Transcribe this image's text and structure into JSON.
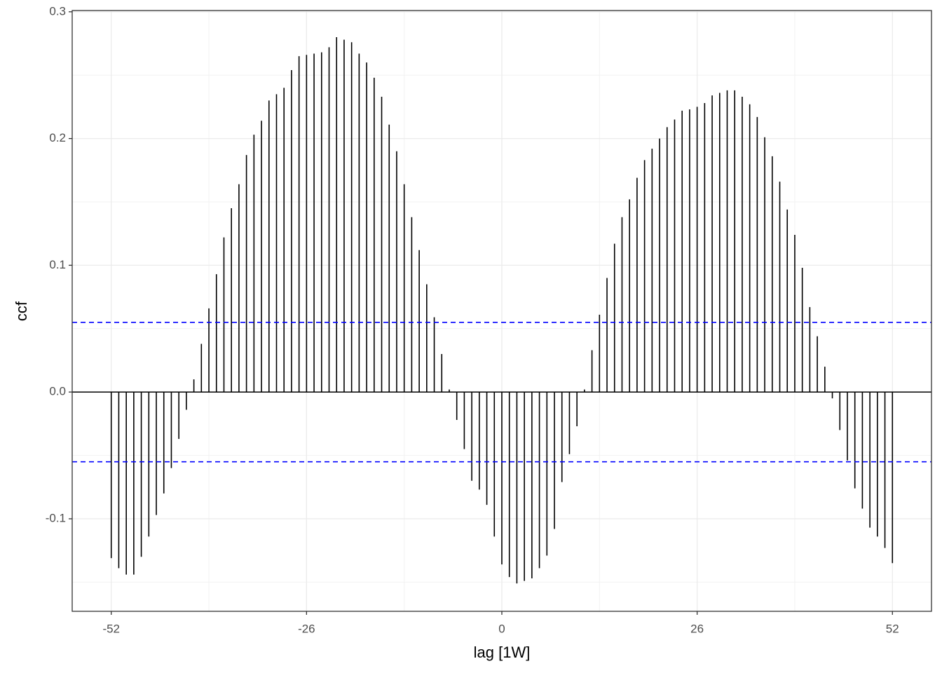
{
  "chart_data": {
    "type": "ccf",
    "x_label": "lag [1W]",
    "y_label": "ccf",
    "x": [
      -52,
      -51,
      -50,
      -49,
      -48,
      -47,
      -46,
      -45,
      -44,
      -43,
      -42,
      -41,
      -40,
      -39,
      -38,
      -37,
      -36,
      -35,
      -34,
      -33,
      -32,
      -31,
      -30,
      -29,
      -28,
      -27,
      -26,
      -25,
      -24,
      -23,
      -22,
      -21,
      -20,
      -19,
      -18,
      -17,
      -16,
      -15,
      -14,
      -13,
      -12,
      -11,
      -10,
      -9,
      -8,
      -7,
      -6,
      -5,
      -4,
      -3,
      -2,
      -1,
      0,
      1,
      2,
      3,
      4,
      5,
      6,
      7,
      8,
      9,
      10,
      11,
      12,
      13,
      14,
      15,
      16,
      17,
      18,
      19,
      20,
      21,
      22,
      23,
      24,
      25,
      26,
      27,
      28,
      29,
      30,
      31,
      32,
      33,
      34,
      35,
      36,
      37,
      38,
      39,
      40,
      41,
      42,
      43,
      44,
      45,
      46,
      47,
      48,
      49,
      50,
      51,
      52
    ],
    "values": [
      -0.131,
      -0.139,
      -0.144,
      -0.144,
      -0.13,
      -0.114,
      -0.097,
      -0.08,
      -0.06,
      -0.037,
      -0.014,
      0.01,
      0.038,
      0.066,
      0.093,
      0.122,
      0.145,
      0.164,
      0.187,
      0.203,
      0.214,
      0.23,
      0.235,
      0.24,
      0.254,
      0.265,
      0.266,
      0.267,
      0.268,
      0.272,
      0.28,
      0.278,
      0.276,
      0.267,
      0.26,
      0.248,
      0.233,
      0.211,
      0.19,
      0.164,
      0.138,
      0.112,
      0.085,
      0.059,
      0.03,
      0.002,
      -0.022,
      -0.045,
      -0.07,
      -0.077,
      -0.089,
      -0.114,
      -0.136,
      -0.146,
      -0.151,
      -0.149,
      -0.147,
      -0.139,
      -0.129,
      -0.108,
      -0.071,
      -0.049,
      -0.027,
      0.002,
      0.033,
      0.061,
      0.09,
      0.117,
      0.138,
      0.152,
      0.169,
      0.183,
      0.192,
      0.2,
      0.209,
      0.215,
      0.222,
      0.223,
      0.225,
      0.228,
      0.234,
      0.236,
      0.238,
      0.238,
      0.233,
      0.227,
      0.217,
      0.201,
      0.186,
      0.166,
      0.144,
      0.124,
      0.098,
      0.067,
      0.044,
      0.02,
      -0.005,
      -0.03,
      -0.054,
      -0.076,
      -0.092,
      -0.107,
      -0.114,
      -0.123,
      -0.135
    ],
    "color": "#000000",
    "ci_lines": [
      0.055,
      -0.055
    ],
    "ci_color": "#0000ff",
    "xlim": [
      -57.2,
      57.2
    ],
    "xticks": [
      -52,
      -26,
      0,
      26,
      52
    ],
    "ylim": [
      -0.173,
      0.301
    ],
    "yticks": [
      {
        "value": -0.1,
        "label": "-0.1"
      },
      {
        "value": 0,
        "label": "0.0"
      },
      {
        "value": 0.1,
        "label": "0.1"
      },
      {
        "value": 0.2,
        "label": "0.2"
      },
      {
        "value": 0.3,
        "label": "0.3"
      }
    ],
    "grid": true
  }
}
